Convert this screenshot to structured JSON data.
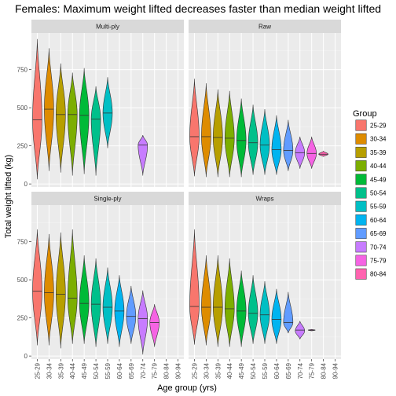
{
  "chart_data": {
    "type": "violin",
    "title": "Females: Maximum weight lifted decreases faster than median weight lifted",
    "xlabel": "Age group (yrs)",
    "ylabel": "Total weight lifted (kg)",
    "categories": [
      "25-29",
      "30-34",
      "35-39",
      "40-44",
      "45-49",
      "50-54",
      "55-59",
      "60-64",
      "65-69",
      "70-74",
      "75-79",
      "80-84",
      "90-94"
    ],
    "y_ticks": [
      0,
      250,
      500,
      750
    ],
    "ylim": [
      -20,
      990
    ],
    "legend": {
      "title": "Group",
      "placement": "right",
      "entries": [
        "25-29",
        "30-34",
        "35-39",
        "40-44",
        "45-49",
        "50-54",
        "55-59",
        "60-64",
        "65-69",
        "70-74",
        "75-79",
        "80-84"
      ]
    },
    "colors": {
      "25-29": "#F8766D",
      "30-34": "#DE8C00",
      "35-39": "#B79F00",
      "40-44": "#7CAE00",
      "45-49": "#00BA38",
      "50-54": "#00C08B",
      "55-59": "#00BFC4",
      "60-64": "#00B4F0",
      "65-69": "#619CFF",
      "70-74": "#C77CFF",
      "75-79": "#F564E3",
      "80-84": "#FF64B0"
    },
    "panels": [
      {
        "name": "Multi-ply",
        "groups": [
          {
            "group": "25-29",
            "min": 30,
            "max": 950,
            "median": 420,
            "mode": 420,
            "width": 0.8
          },
          {
            "group": "30-34",
            "min": 85,
            "max": 890,
            "median": 490,
            "mode": 490,
            "width": 0.8
          },
          {
            "group": "35-39",
            "min": 75,
            "max": 790,
            "median": 455,
            "mode": 455,
            "width": 0.8
          },
          {
            "group": "40-44",
            "min": 55,
            "max": 730,
            "median": 455,
            "mode": 455,
            "width": 0.8
          },
          {
            "group": "45-49",
            "min": 65,
            "max": 760,
            "median": 450,
            "mode": 450,
            "width": 0.8
          },
          {
            "group": "50-54",
            "min": 55,
            "max": 640,
            "median": 425,
            "mode": 425,
            "width": 0.8
          },
          {
            "group": "55-59",
            "min": 235,
            "max": 700,
            "median": 465,
            "mode": 465,
            "width": 0.8
          },
          {
            "group": "70-74",
            "min": 55,
            "max": 320,
            "median": 255,
            "mode": 255,
            "width": 0.8
          }
        ]
      },
      {
        "name": "Raw",
        "groups": [
          {
            "group": "25-29",
            "min": 50,
            "max": 690,
            "median": 310,
            "mode": 310,
            "width": 0.8
          },
          {
            "group": "30-34",
            "min": 45,
            "max": 660,
            "median": 310,
            "mode": 310,
            "width": 0.8
          },
          {
            "group": "35-39",
            "min": 45,
            "max": 620,
            "median": 305,
            "mode": 305,
            "width": 0.8
          },
          {
            "group": "40-44",
            "min": 45,
            "max": 610,
            "median": 300,
            "mode": 300,
            "width": 0.8
          },
          {
            "group": "45-49",
            "min": 45,
            "max": 560,
            "median": 285,
            "mode": 285,
            "width": 0.8
          },
          {
            "group": "50-54",
            "min": 60,
            "max": 520,
            "median": 270,
            "mode": 270,
            "width": 0.8
          },
          {
            "group": "55-59",
            "min": 60,
            "max": 490,
            "median": 255,
            "mode": 255,
            "width": 0.8
          },
          {
            "group": "60-64",
            "min": 60,
            "max": 450,
            "median": 225,
            "mode": 225,
            "width": 0.8
          },
          {
            "group": "65-69",
            "min": 85,
            "max": 420,
            "median": 220,
            "mode": 220,
            "width": 0.8
          },
          {
            "group": "70-74",
            "min": 100,
            "max": 310,
            "median": 205,
            "mode": 205,
            "width": 0.8
          },
          {
            "group": "75-79",
            "min": 100,
            "max": 310,
            "median": 200,
            "mode": 200,
            "width": 0.8
          },
          {
            "group": "80-84",
            "min": 180,
            "max": 215,
            "median": 195,
            "mode": 195,
            "width": 0.8
          }
        ]
      },
      {
        "name": "Single-ply",
        "groups": [
          {
            "group": "25-29",
            "min": 70,
            "max": 830,
            "median": 425,
            "mode": 425,
            "width": 0.8
          },
          {
            "group": "30-34",
            "min": 70,
            "max": 800,
            "median": 415,
            "mode": 415,
            "width": 0.8
          },
          {
            "group": "35-39",
            "min": 50,
            "max": 810,
            "median": 405,
            "mode": 405,
            "width": 0.8
          },
          {
            "group": "40-44",
            "min": 80,
            "max": 830,
            "median": 380,
            "mode": 380,
            "width": 0.8
          },
          {
            "group": "45-49",
            "min": 80,
            "max": 660,
            "median": 345,
            "mode": 345,
            "width": 0.8
          },
          {
            "group": "50-54",
            "min": 60,
            "max": 640,
            "median": 340,
            "mode": 340,
            "width": 0.8
          },
          {
            "group": "55-59",
            "min": 80,
            "max": 580,
            "median": 320,
            "mode": 320,
            "width": 0.8
          },
          {
            "group": "60-64",
            "min": 60,
            "max": 530,
            "median": 295,
            "mode": 295,
            "width": 0.8
          },
          {
            "group": "65-69",
            "min": 80,
            "max": 460,
            "median": 260,
            "mode": 260,
            "width": 0.8
          },
          {
            "group": "70-74",
            "min": 10,
            "max": 430,
            "median": 245,
            "mode": 245,
            "width": 0.8
          },
          {
            "group": "75-79",
            "min": 60,
            "max": 340,
            "median": 220,
            "mode": 220,
            "width": 0.8
          }
        ]
      },
      {
        "name": "Wraps",
        "groups": [
          {
            "group": "25-29",
            "min": 75,
            "max": 830,
            "median": 325,
            "mode": 325,
            "width": 0.8
          },
          {
            "group": "30-34",
            "min": 70,
            "max": 660,
            "median": 320,
            "mode": 320,
            "width": 0.8
          },
          {
            "group": "35-39",
            "min": 60,
            "max": 660,
            "median": 320,
            "mode": 320,
            "width": 0.8
          },
          {
            "group": "40-44",
            "min": 60,
            "max": 640,
            "median": 310,
            "mode": 310,
            "width": 0.8
          },
          {
            "group": "45-49",
            "min": 60,
            "max": 560,
            "median": 295,
            "mode": 295,
            "width": 0.8
          },
          {
            "group": "50-54",
            "min": 80,
            "max": 530,
            "median": 280,
            "mode": 280,
            "width": 0.8
          },
          {
            "group": "55-59",
            "min": 80,
            "max": 490,
            "median": 270,
            "mode": 270,
            "width": 0.8
          },
          {
            "group": "60-64",
            "min": 80,
            "max": 440,
            "median": 240,
            "mode": 240,
            "width": 0.8
          },
          {
            "group": "65-69",
            "min": 150,
            "max": 420,
            "median": 220,
            "mode": 220,
            "width": 0.8
          },
          {
            "group": "70-74",
            "min": 110,
            "max": 230,
            "median": 170,
            "mode": 165,
            "width": 0.8
          },
          {
            "group": "75-79",
            "min": 165,
            "max": 175,
            "median": 170,
            "mode": 170,
            "width": 0.6
          }
        ]
      }
    ]
  }
}
